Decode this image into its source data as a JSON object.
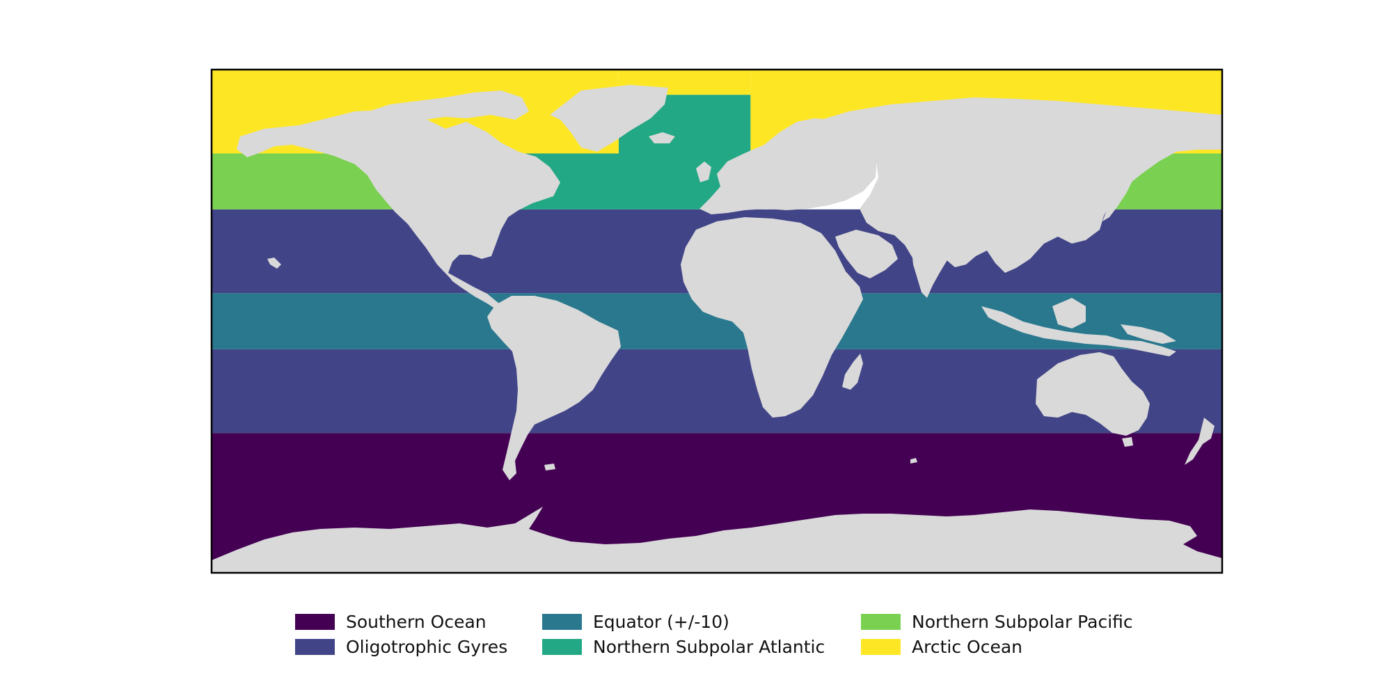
{
  "map": {
    "projection": "equirectangular",
    "extent_degrees": {
      "lon": [
        -180,
        180
      ],
      "lat": [
        -90,
        90
      ]
    },
    "land_color": "#d9d9d9",
    "unclassified_ocean_color": "#ffffff",
    "frame_color": "#000000"
  },
  "regions": [
    {
      "id": "southern-ocean",
      "label": "Southern Ocean",
      "color": "#440154",
      "bands": [
        {
          "lat": [
            -90,
            -40
          ],
          "lon": [
            -180,
            180
          ]
        }
      ]
    },
    {
      "id": "oligotrophic-gyres",
      "label": "Oligotrophic Gyres",
      "color": "#414487",
      "bands": [
        {
          "lat": [
            -40,
            -10
          ],
          "lon": [
            -180,
            180
          ]
        },
        {
          "lat": [
            10,
            40
          ],
          "lon": [
            -180,
            180
          ]
        }
      ]
    },
    {
      "id": "equator",
      "label": "Equator (+/-10)",
      "color": "#2a788e",
      "bands": [
        {
          "lat": [
            -10,
            10
          ],
          "lon": [
            -180,
            180
          ]
        }
      ]
    },
    {
      "id": "northern-subpolar-atlantic",
      "label": "Northern Subpolar Atlantic",
      "color": "#22a884",
      "bands": [
        {
          "lat": [
            40,
            60
          ],
          "lon": [
            -100,
            12
          ]
        },
        {
          "lat": [
            60,
            81
          ],
          "lon": [
            -35,
            12
          ]
        }
      ]
    },
    {
      "id": "northern-subpolar-pacific",
      "label": "Northern Subpolar Pacific",
      "color": "#7ad151",
      "bands": [
        {
          "lat": [
            40,
            60
          ],
          "lon": [
            -180,
            -100
          ]
        },
        {
          "lat": [
            40,
            60
          ],
          "lon": [
            120,
            180
          ]
        }
      ]
    },
    {
      "id": "arctic-ocean",
      "label": "Arctic Ocean",
      "color": "#fde725",
      "bands": [
        {
          "lat": [
            60,
            90
          ],
          "lon": [
            -180,
            -35
          ]
        },
        {
          "lat": [
            81,
            90
          ],
          "lon": [
            -35,
            12
          ]
        },
        {
          "lat": [
            60,
            90
          ],
          "lon": [
            12,
            180
          ]
        }
      ]
    }
  ],
  "legend": {
    "entries": [
      {
        "label": "Southern Ocean",
        "color": "#440154"
      },
      {
        "label": "Oligotrophic Gyres",
        "color": "#414487"
      },
      {
        "label": "Equator (+/-10)",
        "color": "#2a788e"
      },
      {
        "label": "Northern Subpolar Atlantic",
        "color": "#22a884"
      },
      {
        "label": "Northern Subpolar Pacific",
        "color": "#7ad151"
      },
      {
        "label": "Arctic Ocean",
        "color": "#fde725"
      }
    ]
  }
}
